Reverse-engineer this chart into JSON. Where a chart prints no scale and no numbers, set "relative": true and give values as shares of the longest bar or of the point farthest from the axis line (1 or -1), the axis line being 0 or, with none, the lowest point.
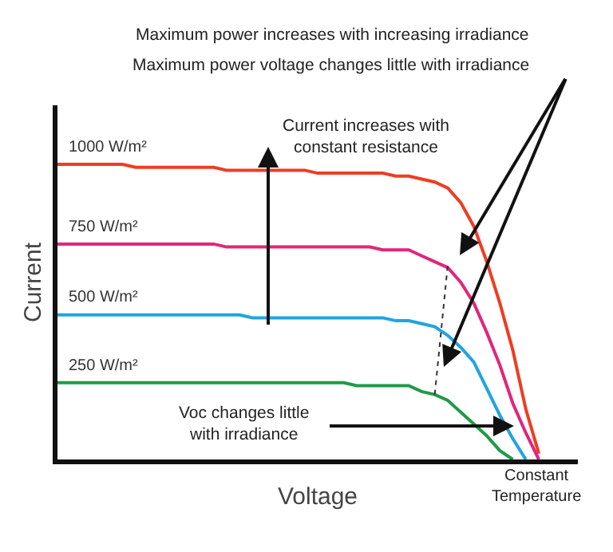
{
  "chart_data": {
    "type": "line",
    "relative": true,
    "xlabel": "Voltage",
    "ylabel": "Current",
    "categories": [
      null,
      null,
      null,
      null,
      null,
      null,
      null,
      null,
      null,
      null,
      null,
      null,
      null,
      null,
      null,
      null,
      null,
      null,
      null,
      null,
      null,
      null,
      null,
      null,
      null,
      null,
      null,
      null,
      null,
      null,
      null,
      null,
      null,
      null,
      null,
      null,
      null,
      null,
      null,
      null,
      null
    ],
    "series": [
      {
        "name": "1000 W/m²",
        "color": "#ee3d23",
        "values": [
          1.0,
          1.0,
          1.0,
          1.0,
          1.0,
          1.0,
          0.99,
          0.99,
          0.99,
          0.99,
          0.99,
          0.99,
          0.99,
          0.98,
          0.98,
          0.98,
          0.98,
          0.98,
          0.98,
          0.98,
          0.97,
          0.97,
          0.97,
          0.97,
          0.97,
          0.97,
          0.96,
          0.96,
          0.95,
          0.94,
          0.92,
          0.87,
          0.79,
          0.67,
          0.53,
          0.37,
          0.17,
          0.02,
          null,
          null,
          null
        ]
      },
      {
        "name": "750 W/m²",
        "color": "#e0267c",
        "values": [
          0.73,
          0.73,
          0.73,
          0.73,
          0.73,
          0.73,
          0.73,
          0.73,
          0.73,
          0.73,
          0.73,
          0.73,
          0.73,
          0.72,
          0.72,
          0.72,
          0.72,
          0.72,
          0.72,
          0.72,
          0.72,
          0.72,
          0.72,
          0.72,
          0.72,
          0.71,
          0.71,
          0.71,
          0.69,
          0.67,
          0.65,
          0.6,
          0.53,
          0.43,
          0.32,
          0.19,
          0.09,
          0,
          null,
          null,
          null
        ]
      },
      {
        "name": "500 W/m²",
        "color": "#1fa5e0",
        "values": [
          0.49,
          0.49,
          0.49,
          0.49,
          0.49,
          0.49,
          0.49,
          0.49,
          0.49,
          0.49,
          0.49,
          0.49,
          0.49,
          0.49,
          0.49,
          0.48,
          0.48,
          0.48,
          0.48,
          0.48,
          0.48,
          0.48,
          0.48,
          0.48,
          0.48,
          0.48,
          0.47,
          0.47,
          0.46,
          0.45,
          0.42,
          0.38,
          0.33,
          0.24,
          0.15,
          0.07,
          0,
          null,
          null,
          null,
          null
        ]
      },
      {
        "name": "250 W/m²",
        "color": "#1f9a48",
        "values": [
          0.26,
          0.26,
          0.26,
          0.26,
          0.26,
          0.26,
          0.26,
          0.26,
          0.26,
          0.26,
          0.26,
          0.26,
          0.26,
          0.26,
          0.26,
          0.26,
          0.26,
          0.26,
          0.26,
          0.26,
          0.26,
          0.26,
          0.26,
          0.25,
          0.25,
          0.25,
          0.25,
          0.25,
          0.23,
          0.22,
          0.2,
          0.16,
          0.12,
          0.08,
          0.03,
          0,
          null,
          null,
          null,
          null,
          null
        ]
      },
      {
        "type": "line",
        "line_style": "dotted",
        "color": "#333333",
        "values": [
          null,
          null,
          null,
          null,
          null,
          null,
          null,
          null,
          null,
          null,
          null,
          null,
          null,
          null,
          null,
          null,
          null,
          null,
          null,
          null,
          null,
          null,
          null,
          null,
          null,
          null,
          null,
          null,
          null,
          0.22,
          0.66,
          null,
          null,
          null,
          null,
          null,
          null,
          null,
          null,
          null,
          null
        ]
      }
    ],
    "annotations": [
      "Maximum power increases with increasing irradiance",
      "Maximum power voltage changes little with irradiance",
      "Current increases with\nconstant resistance",
      "Voc changes little\nwith irradiance",
      "Constant\nTemperature"
    ],
    "marker": "none",
    "line_style": "solid"
  }
}
